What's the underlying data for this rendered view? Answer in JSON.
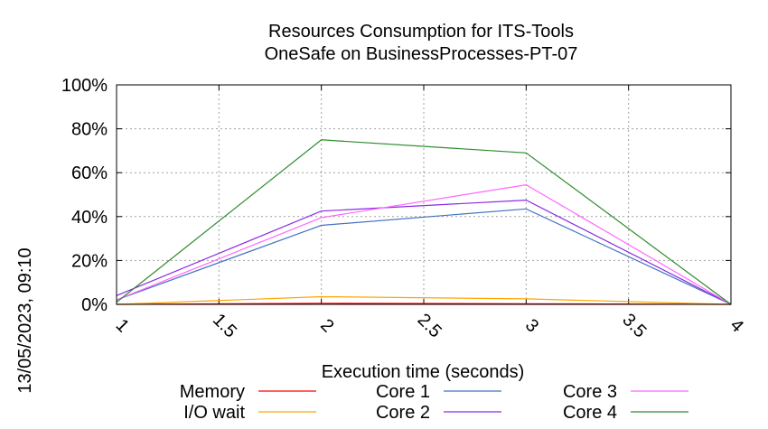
{
  "chart_data": {
    "type": "line",
    "title": [
      "Resources Consumption for ITS-Tools",
      "OneSafe on BusinessProcesses-PT-07"
    ],
    "xlabel": "Execution time (seconds)",
    "ylabel": "",
    "timestamp_label": "13/05/2023, 09:10",
    "xlim": [
      1,
      4
    ],
    "ylim": [
      0,
      100
    ],
    "x_ticks": [
      "1",
      "1.5",
      "2",
      "2.5",
      "3",
      "3.5",
      "4"
    ],
    "y_ticks": [
      "0%",
      "20%",
      "40%",
      "60%",
      "80%",
      "100%"
    ],
    "grid": true,
    "legend_position": "bottom",
    "x": [
      1,
      2,
      3,
      4
    ],
    "series": [
      {
        "name": "Memory",
        "color": "#ff0000",
        "values": [
          0,
          0.5,
          0.3,
          0
        ]
      },
      {
        "name": "I/O wait",
        "color": "#ffa500",
        "values": [
          0,
          3.5,
          2.5,
          0
        ]
      },
      {
        "name": "Core 1",
        "color": "#4472c4",
        "values": [
          2,
          36,
          43.5,
          0
        ]
      },
      {
        "name": "Core 2",
        "color": "#8a2be2",
        "values": [
          4,
          42.5,
          47.5,
          0
        ]
      },
      {
        "name": "Core 3",
        "color": "#ff66ff",
        "values": [
          2,
          39.5,
          54.5,
          0
        ]
      },
      {
        "name": "Core 4",
        "color": "#2e8b2e",
        "values": [
          1,
          75,
          69,
          0
        ]
      }
    ]
  }
}
